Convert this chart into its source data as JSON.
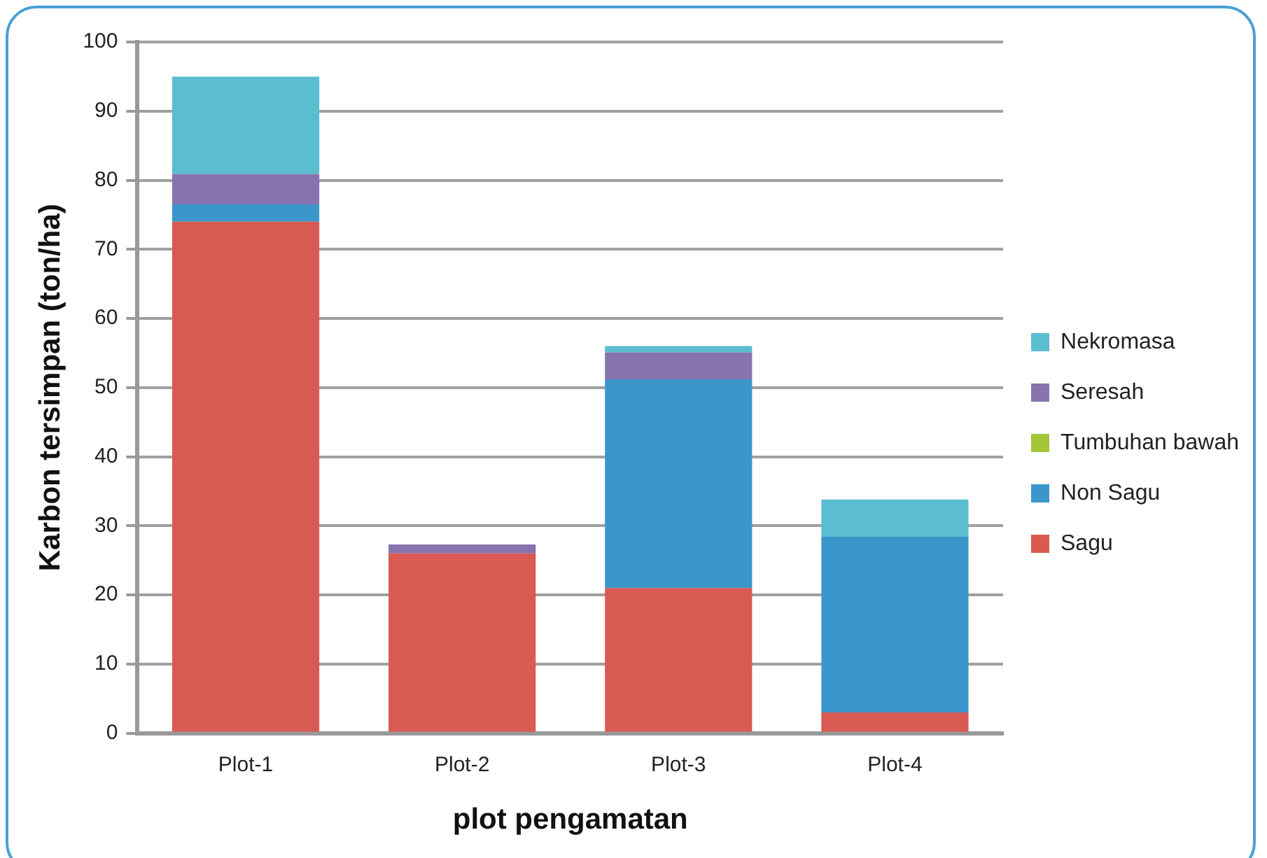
{
  "chart_data": {
    "type": "bar",
    "stacked": true,
    "xlabel": "plot pengamatan",
    "ylabel": "Karbon tersimpan (ton/ha)",
    "categories": [
      "Plot-1",
      "Plot-2",
      "Plot-3",
      "Plot-4"
    ],
    "series": [
      {
        "name": "Sagu",
        "color": "#d85a53",
        "values": [
          74,
          26,
          21,
          3
        ]
      },
      {
        "name": "Non Sagu",
        "color": "#3a96cb",
        "values": [
          2.5,
          0,
          30.2,
          25.4
        ]
      },
      {
        "name": "Tumbuhan bawah",
        "color": "#a4c43a",
        "values": [
          0,
          0,
          0,
          0
        ]
      },
      {
        "name": "Seresah",
        "color": "#8773ae",
        "values": [
          4.4,
          1.3,
          3.9,
          0
        ]
      },
      {
        "name": "Nekromasa",
        "color": "#5bbdd0",
        "values": [
          14.1,
          0,
          0.9,
          5.4
        ]
      }
    ],
    "ylim": [
      0,
      100
    ],
    "yticks": [
      0,
      10,
      20,
      30,
      40,
      50,
      60,
      70,
      80,
      90,
      100
    ],
    "grid": "y",
    "legend": "right"
  }
}
